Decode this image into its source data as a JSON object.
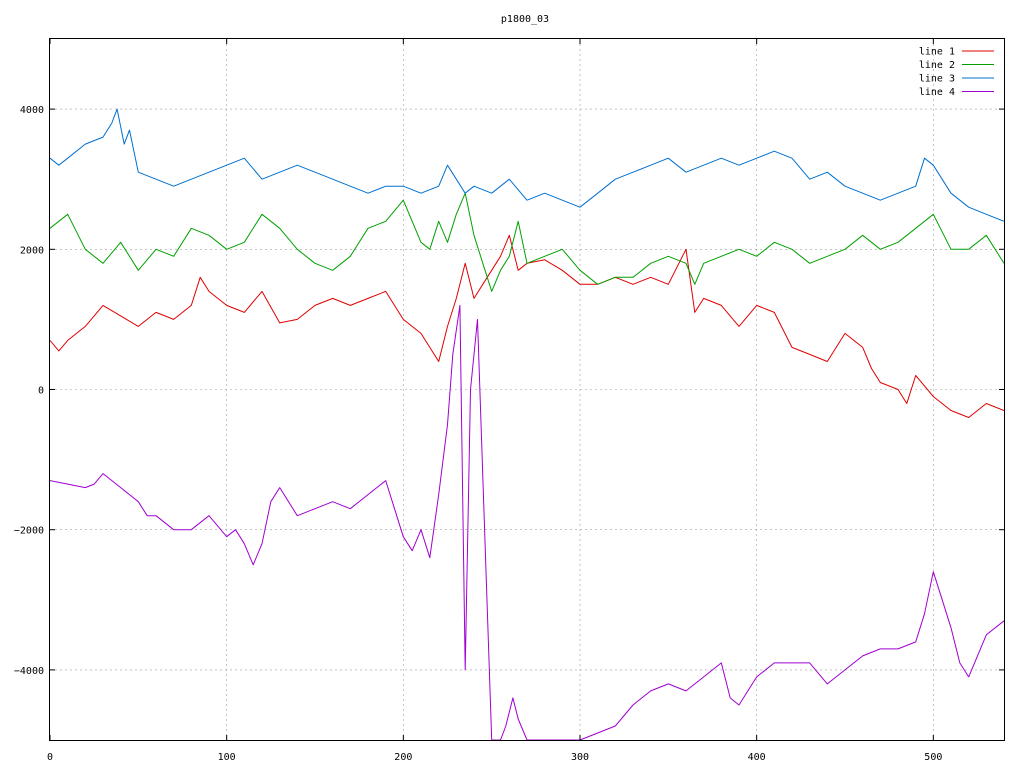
{
  "chart_data": {
    "type": "line",
    "title": "p1800_03",
    "xlabel": "",
    "ylabel": "",
    "xlim": [
      0,
      540
    ],
    "ylim": [
      -5000,
      5000
    ],
    "x_ticks": [
      0,
      100,
      200,
      300,
      400,
      500
    ],
    "y_ticks": [
      -4000,
      -2000,
      0,
      2000,
      4000
    ],
    "y_tick_labels": [
      "−4000",
      "−2000",
      "0",
      "2000",
      "4000"
    ],
    "grid": true,
    "legend_position": "top-right",
    "series": [
      {
        "name": "line 1",
        "color": "#e00000",
        "x": [
          0,
          5,
          10,
          20,
          30,
          40,
          50,
          60,
          70,
          80,
          85,
          90,
          100,
          110,
          120,
          130,
          140,
          150,
          160,
          170,
          180,
          190,
          200,
          210,
          215,
          220,
          225,
          230,
          235,
          240,
          245,
          250,
          255,
          260,
          265,
          270,
          280,
          290,
          300,
          310,
          320,
          330,
          340,
          350,
          360,
          365,
          370,
          380,
          390,
          400,
          410,
          420,
          430,
          440,
          450,
          460,
          465,
          470,
          480,
          485,
          490,
          500,
          510,
          520,
          530,
          540
        ],
        "y": [
          700,
          550,
          700,
          900,
          1200,
          1050,
          900,
          1100,
          1000,
          1200,
          1600,
          1400,
          1200,
          1100,
          1400,
          950,
          1000,
          1200,
          1300,
          1200,
          1300,
          1400,
          1000,
          800,
          600,
          400,
          900,
          1300,
          1800,
          1300,
          1500,
          1700,
          1900,
          2200,
          1700,
          1800,
          1850,
          1700,
          1500,
          1500,
          1600,
          1500,
          1600,
          1500,
          2000,
          1100,
          1300,
          1200,
          900,
          1200,
          1100,
          600,
          500,
          400,
          800,
          600,
          300,
          100,
          0,
          -200,
          200,
          -100,
          -300,
          -400,
          -200,
          -300
        ]
      },
      {
        "name": "line 2",
        "color": "#00a000",
        "x": [
          0,
          5,
          10,
          20,
          30,
          40,
          50,
          60,
          70,
          80,
          90,
          100,
          110,
          120,
          130,
          140,
          150,
          160,
          170,
          180,
          190,
          200,
          210,
          215,
          220,
          225,
          230,
          235,
          240,
          245,
          250,
          255,
          260,
          265,
          270,
          280,
          290,
          300,
          310,
          320,
          330,
          340,
          350,
          360,
          365,
          370,
          380,
          390,
          400,
          410,
          420,
          430,
          440,
          450,
          460,
          470,
          480,
          490,
          500,
          510,
          520,
          530,
          540
        ],
        "y": [
          2300,
          2400,
          2500,
          2000,
          1800,
          2100,
          1700,
          2000,
          1900,
          2300,
          2200,
          2000,
          2100,
          2500,
          2300,
          2000,
          1800,
          1700,
          1900,
          2300,
          2400,
          2700,
          2100,
          2000,
          2400,
          2100,
          2500,
          2800,
          2200,
          1800,
          1400,
          1700,
          1900,
          2400,
          1800,
          1900,
          2000,
          1700,
          1500,
          1600,
          1600,
          1800,
          1900,
          1800,
          1500,
          1800,
          1900,
          2000,
          1900,
          2100,
          2000,
          1800,
          1900,
          2000,
          2200,
          2000,
          2100,
          2300,
          2500,
          2000,
          2000,
          2200,
          1800
        ]
      },
      {
        "name": "line 3",
        "color": "#0070d0",
        "x": [
          0,
          5,
          10,
          20,
          30,
          35,
          38,
          42,
          45,
          50,
          60,
          70,
          80,
          90,
          100,
          110,
          120,
          130,
          140,
          150,
          160,
          170,
          180,
          190,
          200,
          210,
          220,
          225,
          230,
          235,
          240,
          250,
          260,
          270,
          280,
          290,
          300,
          310,
          320,
          330,
          340,
          350,
          360,
          370,
          380,
          390,
          400,
          410,
          420,
          430,
          440,
          450,
          460,
          470,
          480,
          490,
          495,
          500,
          510,
          520,
          530,
          540
        ],
        "y": [
          3300,
          3200,
          3300,
          3500,
          3600,
          3800,
          4000,
          3500,
          3700,
          3100,
          3000,
          2900,
          3000,
          3100,
          3200,
          3300,
          3000,
          3100,
          3200,
          3100,
          3000,
          2900,
          2800,
          2900,
          2900,
          2800,
          2900,
          3200,
          3000,
          2800,
          2900,
          2800,
          3000,
          2700,
          2800,
          2700,
          2600,
          2800,
          3000,
          3100,
          3200,
          3300,
          3100,
          3200,
          3300,
          3200,
          3300,
          3400,
          3300,
          3000,
          3100,
          2900,
          2800,
          2700,
          2800,
          2900,
          3300,
          3200,
          2800,
          2600,
          2500,
          2400
        ]
      },
      {
        "name": "line 4",
        "color": "#a000d0",
        "x": [
          0,
          10,
          20,
          25,
          30,
          40,
          50,
          55,
          60,
          70,
          80,
          90,
          100,
          105,
          110,
          115,
          120,
          125,
          130,
          140,
          150,
          160,
          170,
          180,
          190,
          195,
          200,
          205,
          210,
          215,
          220,
          225,
          228,
          232,
          235,
          238,
          242,
          246,
          250,
          255,
          258,
          262,
          265,
          270,
          280,
          290,
          300,
          310,
          320,
          330,
          340,
          350,
          360,
          370,
          380,
          385,
          390,
          400,
          410,
          420,
          430,
          440,
          450,
          460,
          470,
          480,
          490,
          495,
          500,
          505,
          510,
          515,
          520,
          530,
          540
        ],
        "y": [
          -1300,
          -1350,
          -1400,
          -1350,
          -1200,
          -1400,
          -1600,
          -1800,
          -1800,
          -2000,
          -2000,
          -1800,
          -2100,
          -2000,
          -2200,
          -2500,
          -2200,
          -1600,
          -1400,
          -1800,
          -1700,
          -1600,
          -1700,
          -1500,
          -1300,
          -1700,
          -2100,
          -2300,
          -2000,
          -2400,
          -1500,
          -500,
          500,
          1200,
          -4000,
          0,
          1000,
          -2000,
          -5000,
          -5000,
          -4800,
          -4400,
          -4700,
          -5000,
          -5000,
          -5000,
          -5000,
          -4900,
          -4800,
          -4500,
          -4300,
          -4200,
          -4300,
          -4100,
          -3900,
          -4400,
          -4500,
          -4100,
          -3900,
          -3900,
          -3900,
          -4200,
          -4000,
          -3800,
          -3700,
          -3700,
          -3600,
          -3200,
          -2600,
          -3000,
          -3400,
          -3900,
          -4100,
          -3500,
          -3300
        ]
      }
    ]
  }
}
